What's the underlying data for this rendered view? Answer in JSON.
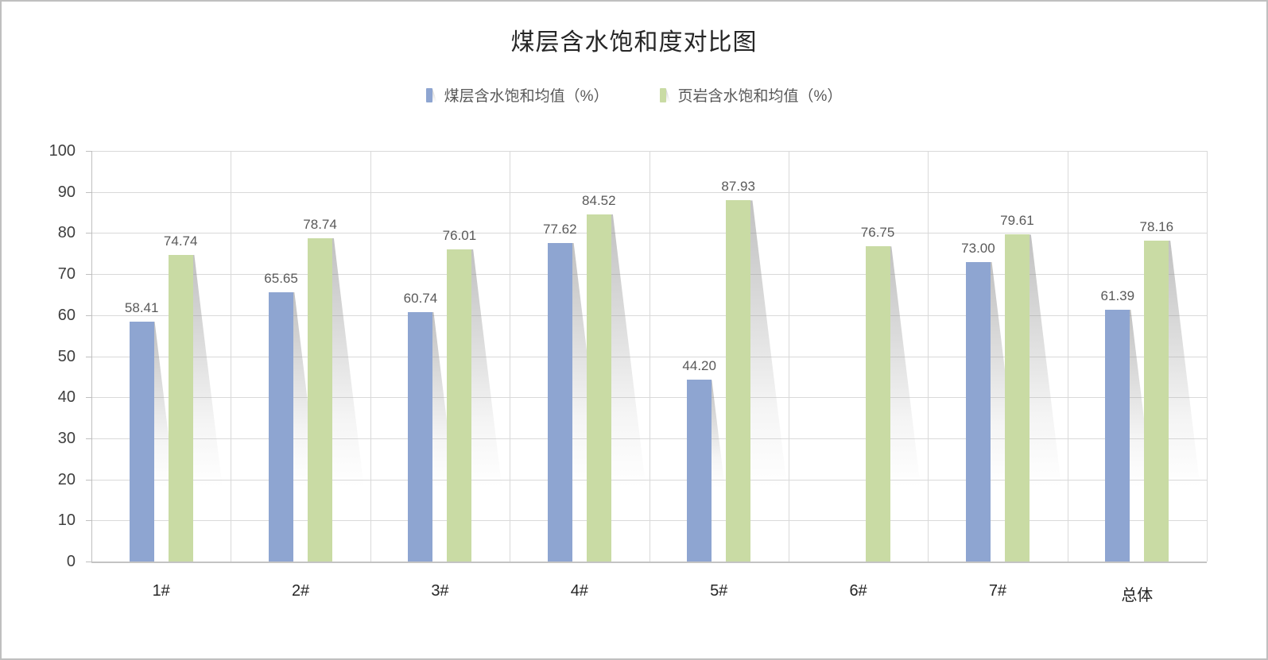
{
  "chart_data": {
    "type": "bar",
    "title": "煤层含水饱和度对比图",
    "categories": [
      "1#",
      "2#",
      "3#",
      "4#",
      "5#",
      "6#",
      "7#",
      "总体"
    ],
    "series": [
      {
        "name": "煤层含水饱和均值（%）",
        "color": "#8EA5D1",
        "values": [
          58.41,
          65.65,
          60.74,
          77.62,
          44.2,
          null,
          73.0,
          61.39
        ]
      },
      {
        "name": "页岩含水饱和均值（%）",
        "color": "#C9DBA4",
        "values": [
          74.74,
          78.74,
          76.01,
          84.52,
          87.93,
          76.75,
          79.61,
          78.16
        ]
      }
    ],
    "ylim": [
      0,
      100
    ],
    "ytick_step": 10,
    "ytick_labels": [
      "0",
      "10",
      "20",
      "30",
      "40",
      "50",
      "60",
      "70",
      "80",
      "90",
      "100"
    ],
    "grid": true,
    "legend_position": "top",
    "value_label_decimals": 2,
    "colors": {
      "gridline": "#D9D9D9",
      "axis": "#BFBFBF",
      "title_text": "#262626",
      "tick_text": "#3F3F3F",
      "value_label_text": "#595959",
      "frame_border": "#BFBFBF"
    }
  }
}
